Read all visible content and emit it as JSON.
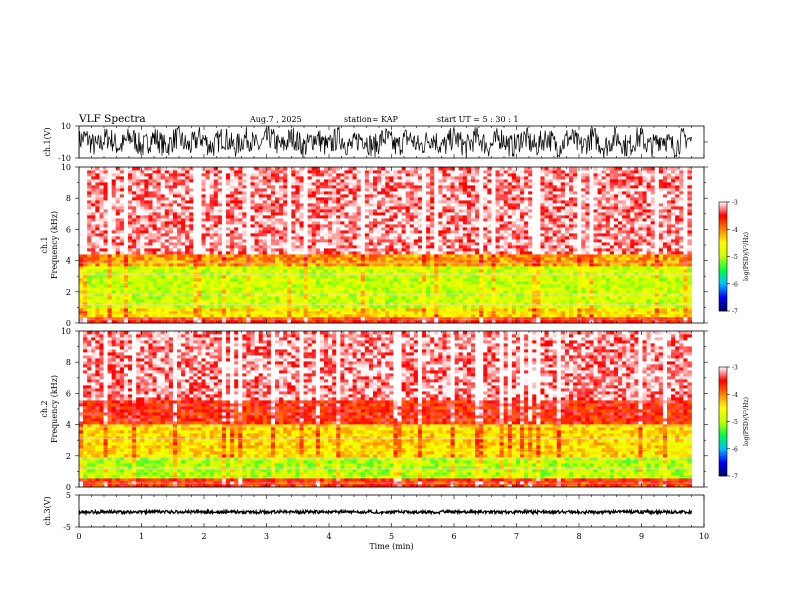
{
  "header": {
    "title": "VLF Spectra",
    "date": "Aug.7 , 2025",
    "station": "station= KAP",
    "start_ut": "start UT = 5 : 30 : 1"
  },
  "chart_data": [
    {
      "type": "line",
      "name": "ch1-waveform",
      "ylabel": "ch.1(V)",
      "ylim": [
        -10,
        10
      ],
      "yticklabels": [
        "10",
        "-10"
      ],
      "xlim": [
        0,
        10
      ],
      "description_values": "noisy waveform spanning roughly -9 to +9 V over 0-9.8 min"
    },
    {
      "type": "heatmap",
      "name": "ch1-spectrogram",
      "ylabel": "ch.1\nFrequency (kHz)",
      "ylabel_line1": "ch.1",
      "ylabel_line2": "Frequency (kHz)",
      "ylim": [
        0,
        10
      ],
      "yticks": [
        0,
        2,
        4,
        6,
        8,
        10
      ],
      "xlim": [
        0,
        10
      ],
      "data_end_min": 9.8,
      "colorbar": {
        "label": "log(PSD)(V²/Hz)",
        "min": -7,
        "max": -3,
        "ticks": [
          -3,
          -4,
          -5,
          -6,
          -7
        ]
      },
      "bands_khz": [
        {
          "from": 0.0,
          "to": 0.35,
          "level": -3.6
        },
        {
          "from": 0.35,
          "to": 0.9,
          "level": -4.4
        },
        {
          "from": 0.9,
          "to": 3.6,
          "level": -4.9
        },
        {
          "from": 3.6,
          "to": 4.5,
          "level": -4.1
        },
        {
          "from": 4.5,
          "to": 10.0,
          "level": -3.2
        }
      ]
    },
    {
      "type": "heatmap",
      "name": "ch2-spectrogram",
      "ylabel": "ch.2\nFrequency (kHz)",
      "ylabel_line1": "ch.2",
      "ylabel_line2": "Frequency (kHz)",
      "ylim": [
        0,
        10
      ],
      "yticks": [
        0,
        2,
        4,
        6,
        8,
        10
      ],
      "xlim": [
        0,
        10
      ],
      "data_end_min": 9.8,
      "colorbar": {
        "label": "log(PSD)(V²/Hz)",
        "min": -7,
        "max": -3,
        "ticks": [
          -3,
          -4,
          -5,
          -6,
          -7
        ]
      },
      "bands_khz": [
        {
          "from": 0.0,
          "to": 0.5,
          "level": -3.7
        },
        {
          "from": 0.5,
          "to": 2.0,
          "level": -5.0
        },
        {
          "from": 2.0,
          "to": 4.0,
          "level": -4.4
        },
        {
          "from": 4.0,
          "to": 5.5,
          "level": -3.6
        },
        {
          "from": 5.5,
          "to": 10.0,
          "level": -3.2
        }
      ]
    },
    {
      "type": "line",
      "name": "ch3-waveform",
      "ylabel": "ch.3(V)",
      "ylim": [
        -5,
        5
      ],
      "yticklabels": [
        "5",
        "-5"
      ],
      "xlim": [
        0,
        10
      ],
      "description_values": "near-constant trace at about -0.3 V with small ripple, 0-9.8 min"
    }
  ],
  "xaxis": {
    "label": "Time (min)",
    "ticks": [
      0,
      1,
      2,
      3,
      4,
      5,
      6,
      7,
      8,
      9,
      10
    ],
    "ticklabels": [
      "0",
      "1",
      "2",
      "3",
      "4",
      "5",
      "6",
      "7",
      "8",
      "9",
      "10"
    ]
  },
  "colors": {
    "axis": "#000000",
    "trace": "#000000",
    "cmap": [
      "#000060",
      "#0000ff",
      "#00c0ff",
      "#00ff40",
      "#c8ff00",
      "#ffff00",
      "#ff8000",
      "#ff0000",
      "#ffffff"
    ]
  }
}
